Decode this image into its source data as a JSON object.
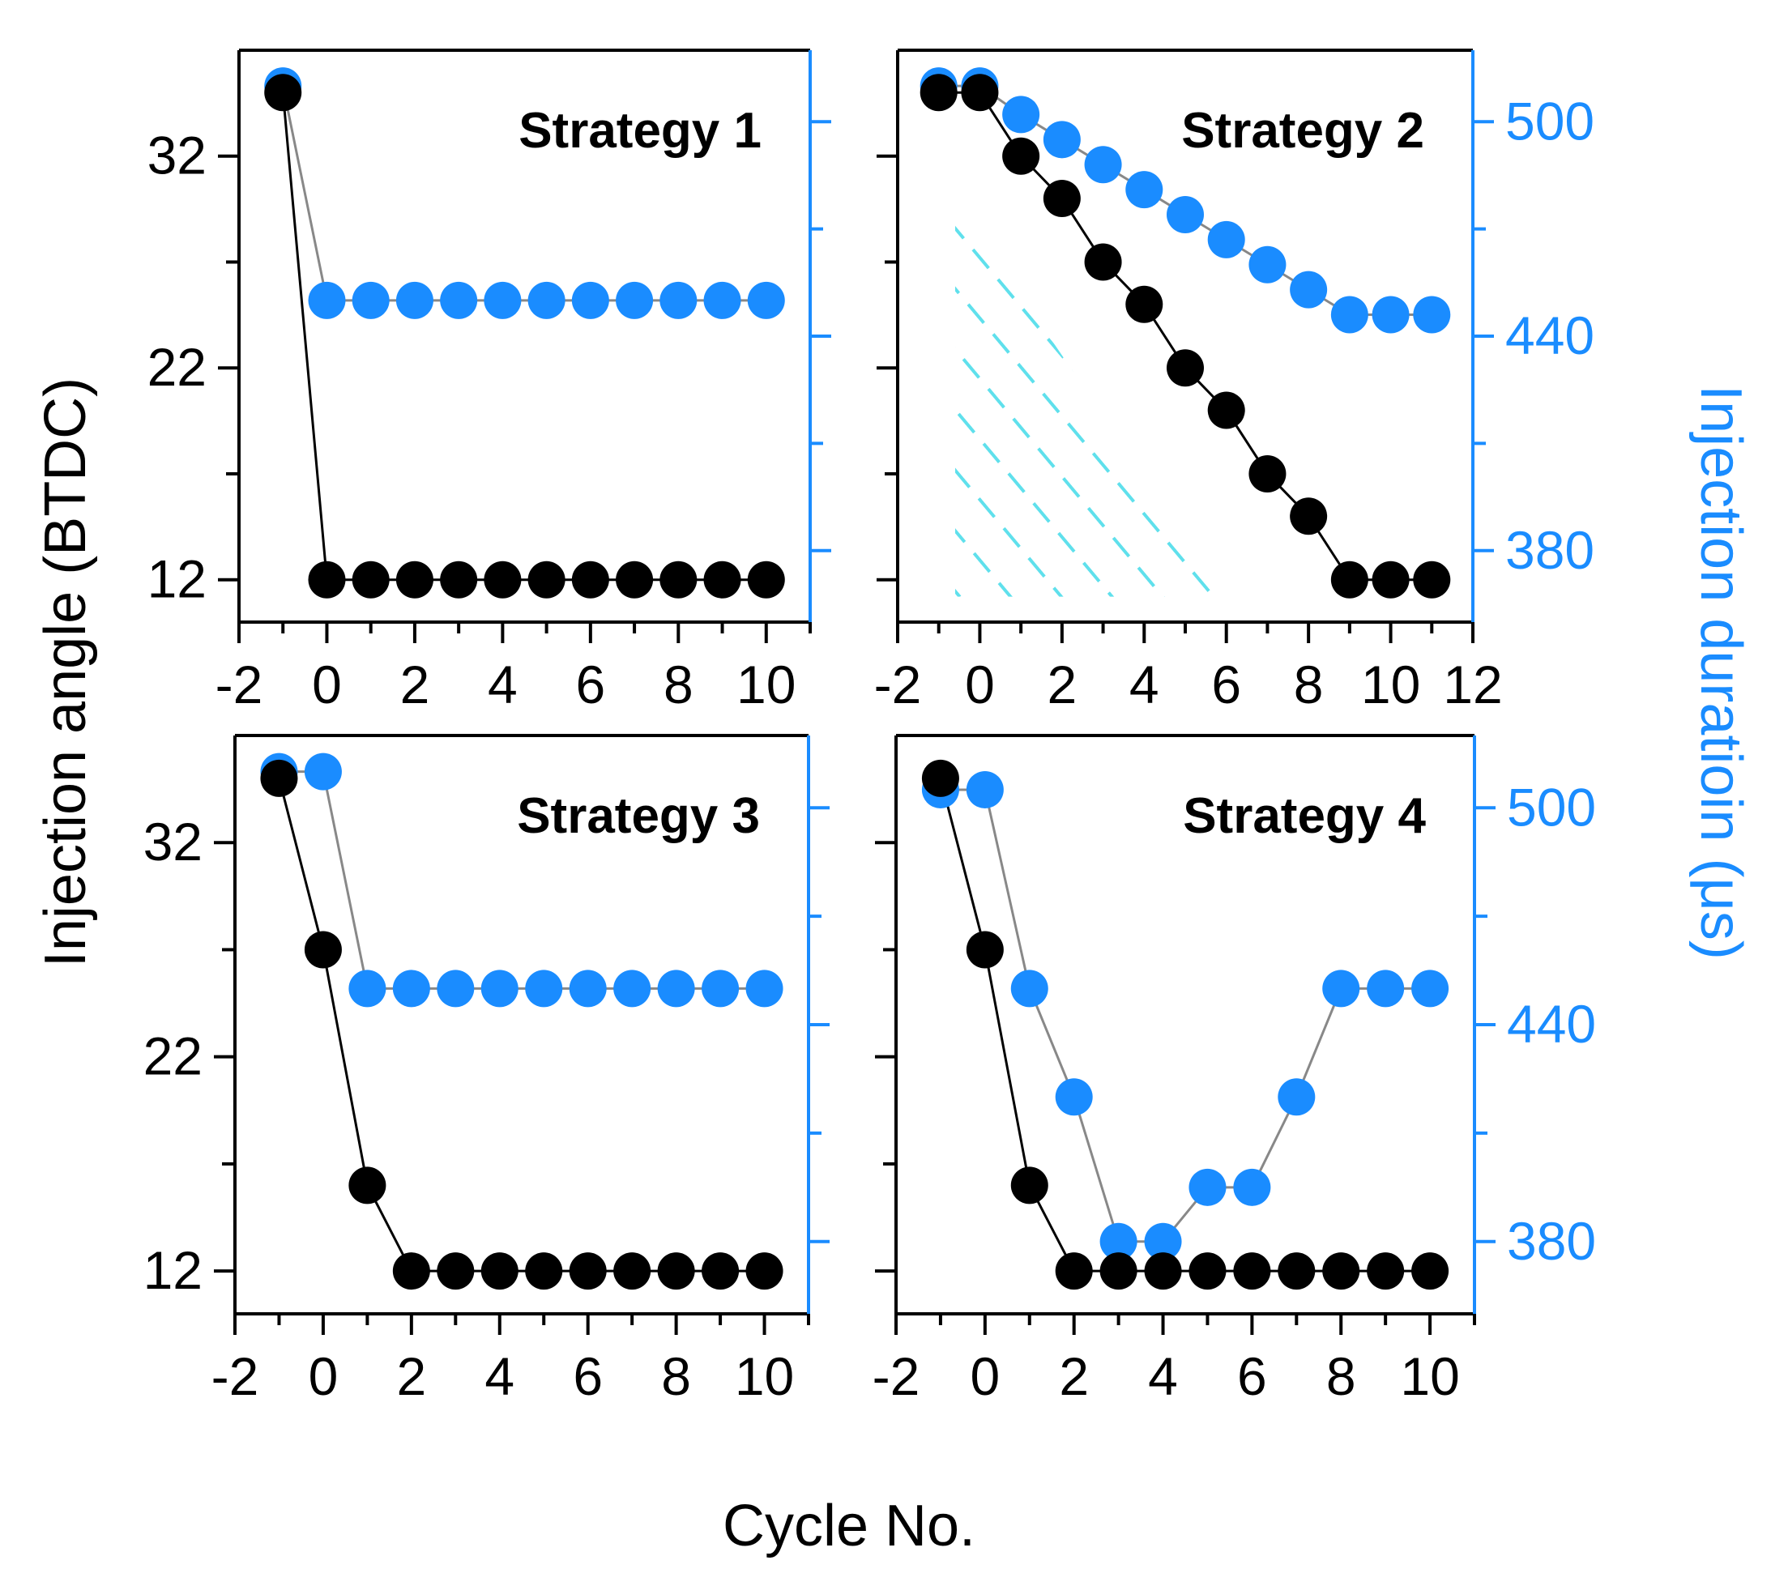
{
  "chart_data": {
    "type": "scatter",
    "x_label": "Cycle No.",
    "y_left_label": "Injection angle (BTDC)",
    "y_right_label": "Injection duratioin (μs)",
    "colors": {
      "angle": "#000000",
      "duration": "#1a8cff",
      "hatch": "#5fe0ec",
      "axis_right": "#1a8cff"
    },
    "panels": [
      {
        "id": "strategy-1",
        "title": "Strategy 1",
        "x_range": [
          -2,
          11
        ],
        "x_ticks": [
          "-2",
          "0",
          "2",
          "4",
          "6",
          "8",
          "10"
        ],
        "y_left_range": [
          10,
          37
        ],
        "y_left_ticks": [
          "12",
          "22",
          "32"
        ],
        "y_right_range": [
          360,
          520
        ],
        "y_right_ticks": [],
        "series": [
          {
            "name": "Injection angle",
            "axis": "left",
            "x": [
              -1,
              0,
              1,
              2,
              3,
              4,
              5,
              6,
              7,
              8,
              9,
              10
            ],
            "y": [
              35,
              12,
              12,
              12,
              12,
              12,
              12,
              12,
              12,
              12,
              12,
              12
            ]
          },
          {
            "name": "Injection duration",
            "axis": "right",
            "x": [
              -1,
              0,
              1,
              2,
              3,
              4,
              5,
              6,
              7,
              8,
              9,
              10
            ],
            "y": [
              510,
              450,
              450,
              450,
              450,
              450,
              450,
              450,
              450,
              450,
              450,
              450
            ]
          }
        ]
      },
      {
        "id": "strategy-2",
        "title": "Strategy 2",
        "x_range": [
          -2,
          12
        ],
        "x_ticks": [
          "-2",
          "0",
          "2",
          "4",
          "6",
          "8",
          "10",
          "12"
        ],
        "y_left_range": [
          10,
          37
        ],
        "y_left_ticks": [],
        "y_right_range": [
          360,
          520
        ],
        "y_right_ticks": [
          "380",
          "440",
          "500"
        ],
        "hatched_region": true,
        "series": [
          {
            "name": "Injection angle",
            "axis": "left",
            "x": [
              -1,
              0,
              1,
              2,
              3,
              4,
              5,
              6,
              7,
              8,
              9,
              10,
              11
            ],
            "y": [
              35,
              35,
              32,
              30,
              27,
              25,
              22,
              20,
              17,
              15,
              12,
              12,
              12
            ]
          },
          {
            "name": "Injection duration",
            "axis": "right",
            "x": [
              -1,
              0,
              1,
              2,
              3,
              4,
              5,
              6,
              7,
              8,
              9,
              10,
              11
            ],
            "y": [
              510,
              510,
              502,
              495,
              488,
              481,
              474,
              467,
              460,
              453,
              446,
              446,
              446
            ]
          }
        ]
      },
      {
        "id": "strategy-3",
        "title": "Strategy 3",
        "x_range": [
          -2,
          11
        ],
        "x_ticks": [
          "-2",
          "0",
          "2",
          "4",
          "6",
          "8",
          "10"
        ],
        "y_left_range": [
          10,
          37
        ],
        "y_left_ticks": [
          "12",
          "22",
          "32"
        ],
        "y_right_range": [
          360,
          520
        ],
        "y_right_ticks": [],
        "series": [
          {
            "name": "Injection angle",
            "axis": "left",
            "x": [
              -1,
              0,
              1,
              2,
              3,
              4,
              5,
              6,
              7,
              8,
              9,
              10
            ],
            "y": [
              35,
              27,
              16,
              12,
              12,
              12,
              12,
              12,
              12,
              12,
              12,
              12
            ]
          },
          {
            "name": "Injection duration",
            "axis": "right",
            "x": [
              -1,
              0,
              1,
              2,
              3,
              4,
              5,
              6,
              7,
              8,
              9,
              10
            ],
            "y": [
              510,
              510,
              450,
              450,
              450,
              450,
              450,
              450,
              450,
              450,
              450,
              450
            ]
          }
        ]
      },
      {
        "id": "strategy-4",
        "title": "Strategy 4",
        "x_range": [
          -2,
          11
        ],
        "x_ticks": [
          "-2",
          "0",
          "2",
          "4",
          "6",
          "8",
          "10"
        ],
        "y_left_range": [
          10,
          37
        ],
        "y_left_ticks": [],
        "y_right_range": [
          360,
          520
        ],
        "y_right_ticks": [
          "380",
          "440",
          "500"
        ],
        "series": [
          {
            "name": "Injection angle",
            "axis": "left",
            "x": [
              -1,
              0,
              1,
              2,
              3,
              4,
              5,
              6,
              7,
              8,
              9,
              10
            ],
            "y": [
              35,
              27,
              16,
              12,
              12,
              12,
              12,
              12,
              12,
              12,
              12,
              12
            ]
          },
          {
            "name": "Injection duration",
            "axis": "right",
            "x": [
              -1,
              0,
              1,
              2,
              3,
              4,
              5,
              6,
              7,
              8,
              9,
              10
            ],
            "y": [
              505,
              505,
              450,
              420,
              380,
              380,
              395,
              395,
              420,
              450,
              450,
              450
            ]
          }
        ]
      }
    ]
  }
}
